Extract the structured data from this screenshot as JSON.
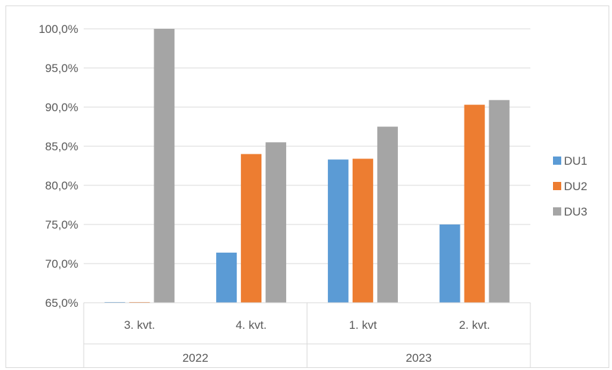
{
  "chart_data": {
    "type": "bar",
    "categories": [
      "3. kvt.",
      "4. kvt.",
      "1. kvt",
      "2. kvt."
    ],
    "groups": [
      {
        "label": "2022",
        "categories": [
          "3. kvt.",
          "4. kvt."
        ]
      },
      {
        "label": "2023",
        "categories": [
          "1. kvt",
          "2. kvt."
        ]
      }
    ],
    "series": [
      {
        "name": "DU1",
        "color": "#5B9BD5",
        "values": [
          64.9,
          71.4,
          83.3,
          75.0
        ]
      },
      {
        "name": "DU2",
        "color": "#ED7D31",
        "values": [
          64.9,
          84.0,
          83.4,
          90.3
        ]
      },
      {
        "name": "DU3",
        "color": "#A5A5A5",
        "values": [
          100.0,
          85.5,
          87.5,
          90.9
        ]
      }
    ],
    "ylim": [
      65,
      100
    ],
    "yticks": [
      65,
      70,
      75,
      80,
      85,
      90,
      95,
      100
    ],
    "ytick_labels": [
      "65,0%",
      "70,0%",
      "75,0%",
      "80,0%",
      "85,0%",
      "90,0%",
      "95,0%",
      "100,0%"
    ],
    "grid": true,
    "legend_position": "right"
  }
}
